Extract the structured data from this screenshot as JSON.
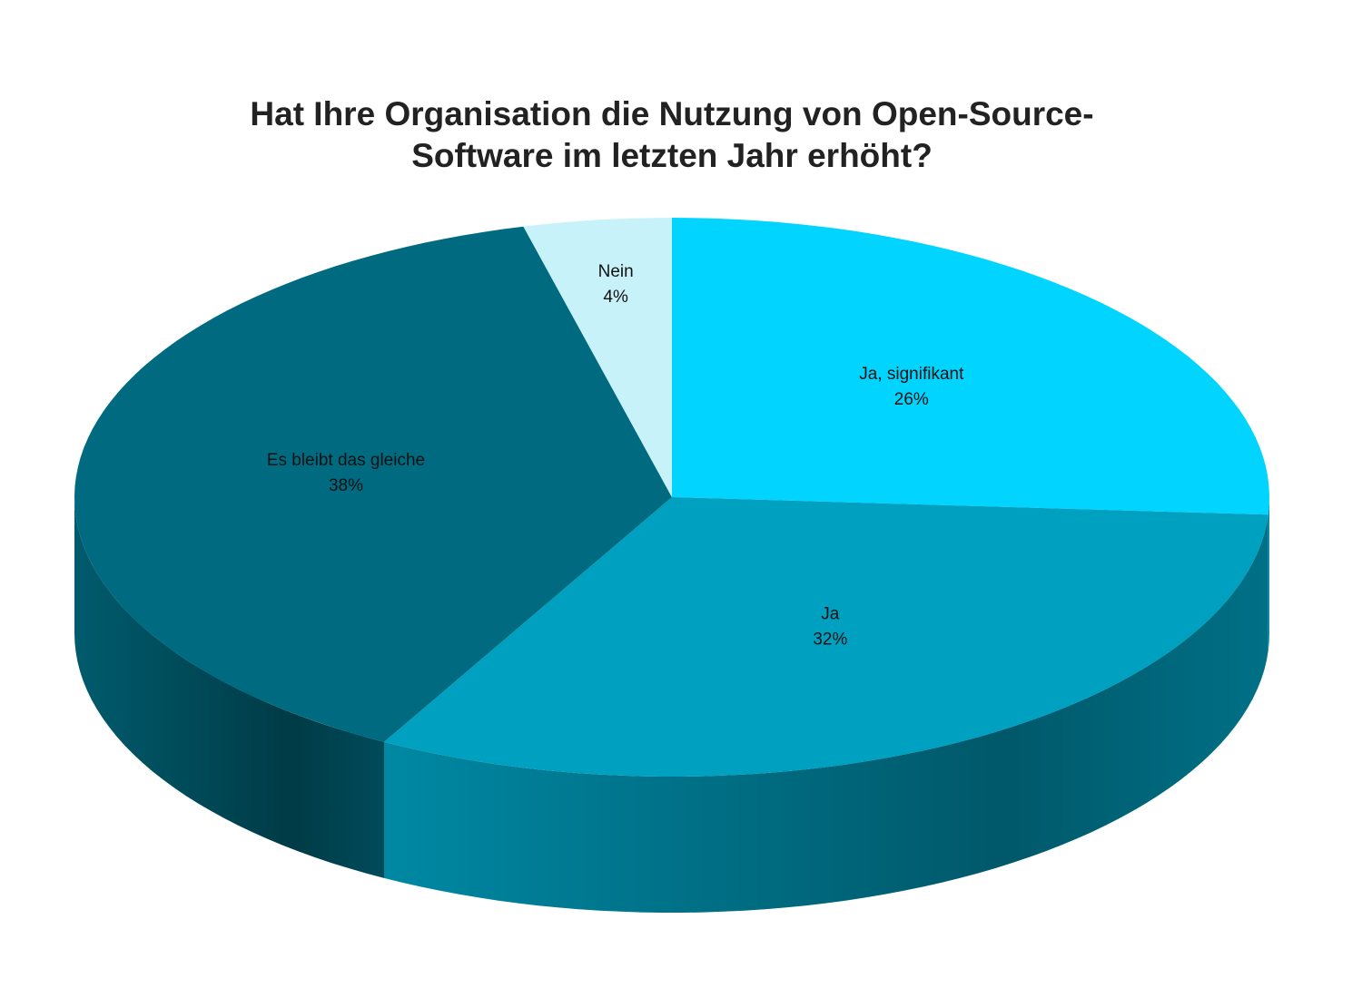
{
  "chart_data": {
    "type": "pie",
    "title": [
      "Hat Ihre Organisation die Nutzung von Open-Source-",
      "Software im letzten Jahr erhöht?"
    ],
    "categories": [
      "Ja, signifikant",
      "Ja",
      "Es bleibt das gleiche",
      "Nein"
    ],
    "values": [
      26,
      32,
      38,
      4
    ],
    "value_labels": [
      "26%",
      "32%",
      "38%",
      "4%"
    ],
    "colors": [
      "#00d4ff",
      "#00a0c0",
      "#006b80",
      "#c8f2fa"
    ]
  }
}
